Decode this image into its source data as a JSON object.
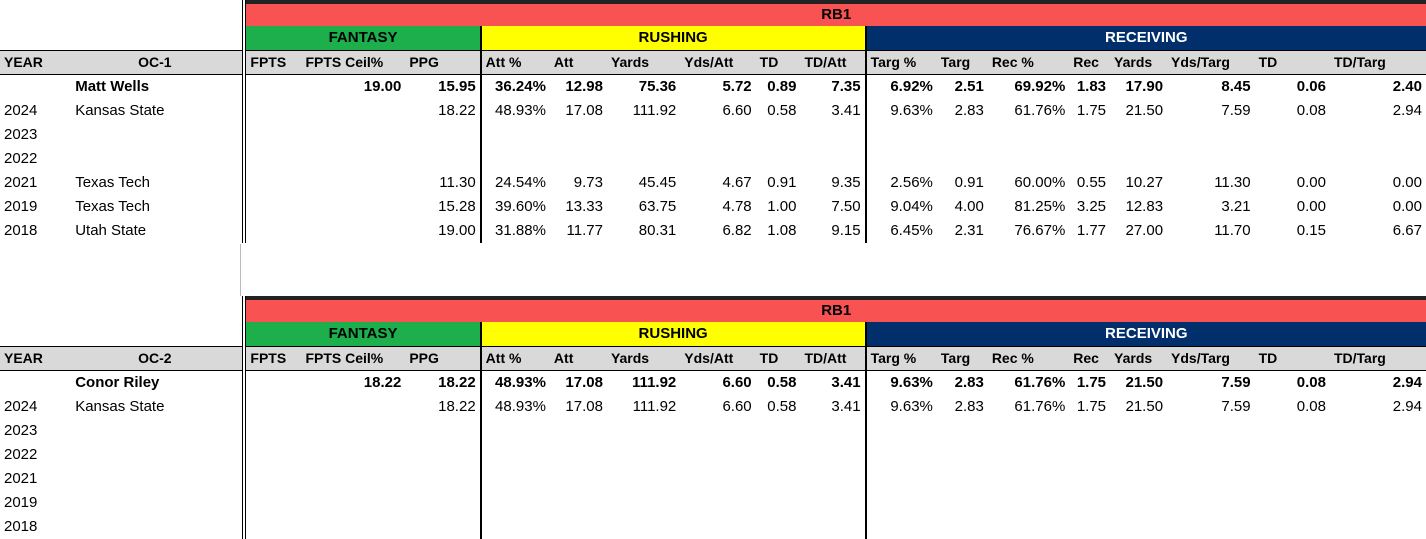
{
  "tables": [
    {
      "title": "RB1",
      "categories": {
        "fantasy": "FANTASY",
        "rushing": "RUSHING",
        "receiving": "RECEIVING"
      },
      "columns": [
        "YEAR",
        "OC-1",
        "FPTS",
        "FPTS Ceil%",
        "PPG",
        "Att %",
        "Att",
        "Yards",
        "Yds/Att",
        "TD",
        "TD/Att",
        "Targ %",
        "Targ",
        "Rec %",
        "Rec",
        "Yards",
        "Yds/Targ",
        "TD",
        "TD/Targ"
      ],
      "rows": [
        [
          "",
          "Matt Wells",
          "",
          "19.00",
          "15.95",
          "36.24%",
          "12.98",
          "75.36",
          "5.72",
          "0.89",
          "7.35",
          "6.92%",
          "2.51",
          "69.92%",
          "1.83",
          "17.90",
          "8.45",
          "0.06",
          "2.40"
        ],
        [
          "2024",
          "Kansas State",
          "",
          "",
          "18.22",
          "48.93%",
          "17.08",
          "111.92",
          "6.60",
          "0.58",
          "3.41",
          "9.63%",
          "2.83",
          "61.76%",
          "1.75",
          "21.50",
          "7.59",
          "0.08",
          "2.94"
        ],
        [
          "2023",
          "",
          "",
          "",
          "",
          "",
          "",
          "",
          "",
          "",
          "",
          "",
          "",
          "",
          "",
          "",
          "",
          "",
          ""
        ],
        [
          "2022",
          "",
          "",
          "",
          "",
          "",
          "",
          "",
          "",
          "",
          "",
          "",
          "",
          "",
          "",
          "",
          "",
          "",
          ""
        ],
        [
          "2021",
          "Texas Tech",
          "",
          "",
          "11.30",
          "24.54%",
          "9.73",
          "45.45",
          "4.67",
          "0.91",
          "9.35",
          "2.56%",
          "0.91",
          "60.00%",
          "0.55",
          "10.27",
          "11.30",
          "0.00",
          "0.00"
        ],
        [
          "2019",
          "Texas Tech",
          "",
          "",
          "15.28",
          "39.60%",
          "13.33",
          "63.75",
          "4.78",
          "1.00",
          "7.50",
          "9.04%",
          "4.00",
          "81.25%",
          "3.25",
          "12.83",
          "3.21",
          "0.00",
          "0.00"
        ],
        [
          "2018",
          "Utah State",
          "",
          "",
          "19.00",
          "31.88%",
          "11.77",
          "80.31",
          "6.82",
          "1.08",
          "9.15",
          "6.45%",
          "2.31",
          "76.67%",
          "1.77",
          "27.00",
          "11.70",
          "0.15",
          "6.67"
        ]
      ]
    },
    {
      "title": "RB1",
      "categories": {
        "fantasy": "FANTASY",
        "rushing": "RUSHING",
        "receiving": "RECEIVING"
      },
      "columns": [
        "YEAR",
        "OC-2",
        "FPTS",
        "FPTS Ceil%",
        "PPG",
        "Att %",
        "Att",
        "Yards",
        "Yds/Att",
        "TD",
        "TD/Att",
        "Targ %",
        "Targ",
        "Rec %",
        "Rec",
        "Yards",
        "Yds/Targ",
        "TD",
        "TD/Targ"
      ],
      "rows": [
        [
          "",
          "Conor Riley",
          "",
          "18.22",
          "18.22",
          "48.93%",
          "17.08",
          "111.92",
          "6.60",
          "0.58",
          "3.41",
          "9.63%",
          "2.83",
          "61.76%",
          "1.75",
          "21.50",
          "7.59",
          "0.08",
          "2.94"
        ],
        [
          "2024",
          "Kansas State",
          "",
          "",
          "18.22",
          "48.93%",
          "17.08",
          "111.92",
          "6.60",
          "0.58",
          "3.41",
          "9.63%",
          "2.83",
          "61.76%",
          "1.75",
          "21.50",
          "7.59",
          "0.08",
          "2.94"
        ],
        [
          "2023",
          "",
          "",
          "",
          "",
          "",
          "",
          "",
          "",
          "",
          "",
          "",
          "",
          "",
          "",
          "",
          "",
          "",
          ""
        ],
        [
          "2022",
          "",
          "",
          "",
          "",
          "",
          "",
          "",
          "",
          "",
          "",
          "",
          "",
          "",
          "",
          "",
          "",
          "",
          ""
        ],
        [
          "2021",
          "",
          "",
          "",
          "",
          "",
          "",
          "",
          "",
          "",
          "",
          "",
          "",
          "",
          "",
          "",
          "",
          "",
          ""
        ],
        [
          "2019",
          "",
          "",
          "",
          "",
          "",
          "",
          "",
          "",
          "",
          "",
          "",
          "",
          "",
          "",
          "",
          "",
          "",
          ""
        ],
        [
          "2018",
          "",
          "",
          "",
          "",
          "",
          "",
          "",
          "",
          "",
          "",
          "",
          "",
          "",
          "",
          "",
          "",
          "",
          ""
        ]
      ]
    }
  ],
  "colors": {
    "rb1": "#f95252",
    "fantasy": "#1daf4c",
    "rushing": "#ffff00",
    "receiving": "#002f6c",
    "header": "#d9d9d9"
  }
}
